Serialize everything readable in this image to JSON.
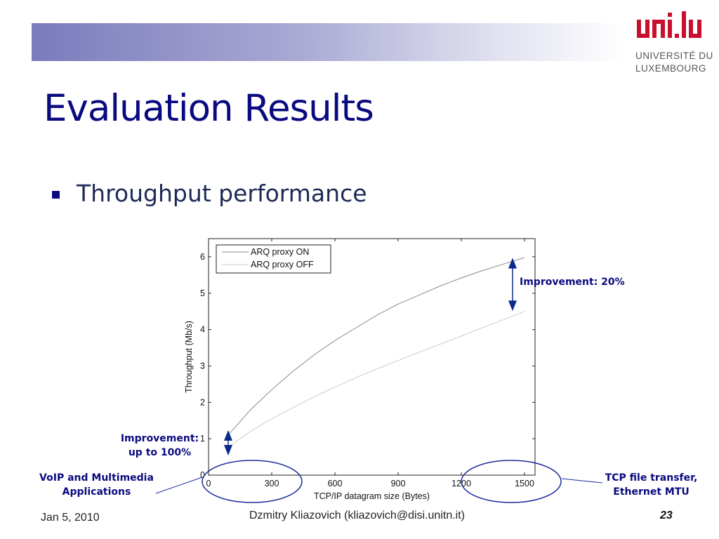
{
  "slide": {
    "title": "Evaluation Results",
    "bullet": "Throughput performance"
  },
  "logo": {
    "mark": "uni.lu",
    "line1": "UNIVERSITÉ DU",
    "line2": "LUXEMBOURG",
    "color": "#c8102e"
  },
  "chart_data": {
    "type": "line",
    "xlabel": "TCP/IP datagram size (Bytes)",
    "ylabel": "Throughput (Mb/s)",
    "xlim": [
      0,
      1550
    ],
    "ylim": [
      0,
      6.5
    ],
    "xticks": [
      0,
      300,
      600,
      900,
      1200,
      1500
    ],
    "yticks": [
      0,
      1,
      2,
      3,
      4,
      5,
      6
    ],
    "legend_position": "top-left",
    "grid": false,
    "series": [
      {
        "name": "ARQ proxy ON",
        "x": [
          100,
          200,
          300,
          400,
          500,
          600,
          700,
          800,
          900,
          1000,
          1100,
          1200,
          1300,
          1400,
          1500
        ],
        "y": [
          1.15,
          1.8,
          2.35,
          2.85,
          3.3,
          3.7,
          4.05,
          4.4,
          4.7,
          4.95,
          5.2,
          5.42,
          5.62,
          5.8,
          5.98
        ]
      },
      {
        "name": "ARQ proxy OFF",
        "x": [
          100,
          200,
          300,
          400,
          500,
          600,
          700,
          800,
          900,
          1000,
          1100,
          1200,
          1300,
          1400,
          1500
        ],
        "y": [
          0.8,
          1.2,
          1.55,
          1.85,
          2.15,
          2.42,
          2.68,
          2.92,
          3.15,
          3.38,
          3.6,
          3.82,
          4.05,
          4.27,
          4.5
        ]
      }
    ],
    "annotations": {
      "improvement_20": "Improvement: 20%",
      "improvement_100_line1": "Improvement:",
      "improvement_100_line2": "up to 100%",
      "voip_line1": "VoIP and Multimedia",
      "voip_line2": "Applications",
      "tcp_line1": "TCP file transfer,",
      "tcp_line2": "Ethernet MTU"
    }
  },
  "footer": {
    "date": "Jan 5, 2010",
    "author": "Dzmitry Kliazovich (kliazovich@disi.unitn.it)",
    "page": "23"
  }
}
